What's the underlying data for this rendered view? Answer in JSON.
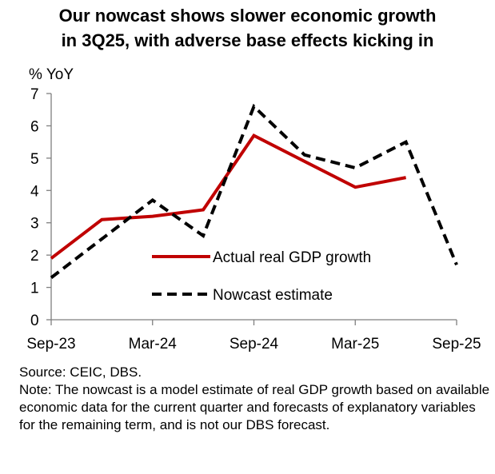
{
  "title": {
    "line1": "Our nowcast shows slower economic growth",
    "line2": "in 3Q25, with adverse base effects kicking in"
  },
  "source": "Source: CEIC, DBS.",
  "note": "Note: The nowcast is a model estimate of real GDP growth based on available economic data for the current quarter and forecasts of explanatory variables for the remaining term, and is not our DBS forecast.",
  "chart_data": {
    "type": "line",
    "title": "Our nowcast shows slower economic growth in 3Q25, with adverse base effects kicking in",
    "ylabel": "% YoY",
    "xlabel": "",
    "ylim": [
      0,
      7
    ],
    "yticks": [
      0,
      1,
      2,
      3,
      4,
      5,
      6,
      7
    ],
    "categories": [
      "Sep-23",
      "Dec-23",
      "Mar-24",
      "Jun-24",
      "Sep-24",
      "Dec-24",
      "Mar-25",
      "Jun-25",
      "Sep-25"
    ],
    "xtick_labels": [
      "Sep-23",
      "Mar-24",
      "Sep-24",
      "Mar-25",
      "Sep-25"
    ],
    "grid": false,
    "legend_position": "center-right",
    "series": [
      {
        "name": "Actual real GDP growth",
        "style": "solid",
        "color": "#c00000",
        "values": [
          1.9,
          3.1,
          3.2,
          3.4,
          5.7,
          null,
          4.1,
          4.4,
          null
        ]
      },
      {
        "name": "Nowcast estimate",
        "style": "dashed",
        "color": "#000000",
        "values": [
          1.3,
          2.5,
          3.7,
          2.6,
          6.6,
          5.1,
          4.7,
          5.5,
          1.7
        ]
      }
    ]
  }
}
